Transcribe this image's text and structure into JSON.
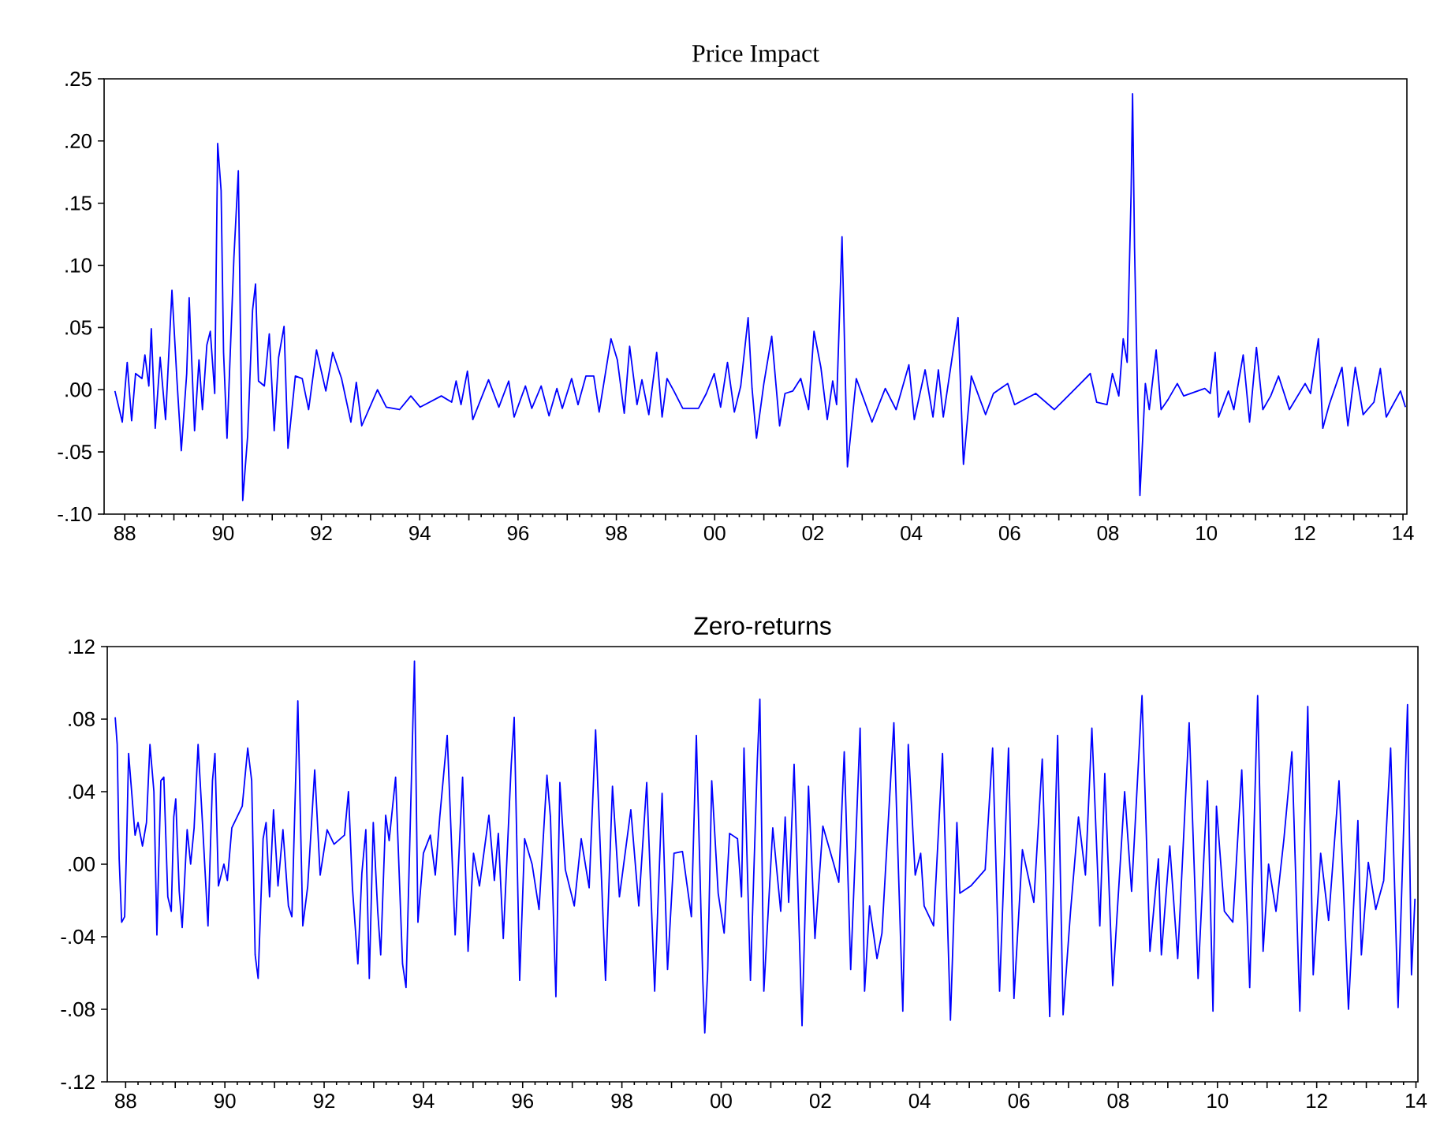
{
  "chart_data": [
    {
      "type": "line",
      "title": "Price Impact",
      "color": "#0000ff",
      "xlim": [
        1987.58,
        2014.08
      ],
      "ylim": [
        -0.1,
        0.25
      ],
      "xticks": [
        {
          "value": 1988,
          "label": "88"
        },
        {
          "value": 1989,
          "label": null
        },
        {
          "value": 1990,
          "label": "90"
        },
        {
          "value": 1991,
          "label": null
        },
        {
          "value": 1992,
          "label": "92"
        },
        {
          "value": 1993,
          "label": null
        },
        {
          "value": 1994,
          "label": "94"
        },
        {
          "value": 1995,
          "label": null
        },
        {
          "value": 1996,
          "label": "96"
        },
        {
          "value": 1997,
          "label": null
        },
        {
          "value": 1998,
          "label": "98"
        },
        {
          "value": 1999,
          "label": null
        },
        {
          "value": 2000,
          "label": "00"
        },
        {
          "value": 2001,
          "label": null
        },
        {
          "value": 2002,
          "label": "02"
        },
        {
          "value": 2003,
          "label": null
        },
        {
          "value": 2004,
          "label": "04"
        },
        {
          "value": 2005,
          "label": null
        },
        {
          "value": 2006,
          "label": "06"
        },
        {
          "value": 2007,
          "label": null
        },
        {
          "value": 2008,
          "label": "08"
        },
        {
          "value": 2009,
          "label": null
        },
        {
          "value": 2010,
          "label": "10"
        },
        {
          "value": 2011,
          "label": null
        },
        {
          "value": 2012,
          "label": "12"
        },
        {
          "value": 2013,
          "label": null
        },
        {
          "value": 2014,
          "label": "14"
        }
      ],
      "yticks": [
        {
          "value": -0.1,
          "label": "-.10"
        },
        {
          "value": -0.05,
          "label": "-.05"
        },
        {
          "value": 0,
          "label": ".00"
        },
        {
          "value": 0.05,
          "label": ".05"
        },
        {
          "value": 0.1,
          "label": ".10"
        },
        {
          "value": 0.15,
          "label": ".15"
        },
        {
          "value": 0.2,
          "label": ".20"
        },
        {
          "value": 0.25,
          "label": ".25"
        }
      ],
      "x": [
        1987.8,
        1987.95,
        1988.05,
        1988.14,
        1988.22,
        1988.35,
        1988.41,
        1988.49,
        1988.54,
        1988.62,
        1988.72,
        1988.83,
        1988.96,
        1989.06,
        1989.15,
        1989.26,
        1989.31,
        1989.42,
        1989.51,
        1989.58,
        1989.67,
        1989.74,
        1989.83,
        1989.89,
        1989.96,
        1990.01,
        1990.08,
        1990.22,
        1990.31,
        1990.4,
        1990.5,
        1990.6,
        1990.66,
        1990.72,
        1990.84,
        1990.94,
        1991.04,
        1991.13,
        1991.24,
        1991.32,
        1991.47,
        1991.61,
        1991.74,
        1991.9,
        1992.09,
        1992.23,
        1992.41,
        1992.6,
        1992.71,
        1992.82,
        1993.14,
        1993.32,
        1993.59,
        1993.82,
        1994.01,
        1994.44,
        1994.65,
        1994.74,
        1994.84,
        1994.97,
        1995.08,
        1995.4,
        1995.61,
        1995.81,
        1995.92,
        1996.15,
        1996.28,
        1996.47,
        1996.63,
        1996.79,
        1996.9,
        1997.09,
        1997.22,
        1997.38,
        1997.54,
        1997.65,
        1997.89,
        1998.02,
        1998.16,
        1998.27,
        1998.42,
        1998.52,
        1998.66,
        1998.82,
        1998.93,
        1999.03,
        1999.17,
        1999.35,
        1999.67,
        1999.83,
        1999.99,
        2000.12,
        2000.26,
        2000.4,
        2000.53,
        2000.68,
        2000.76,
        2000.85,
        2001.0,
        2001.16,
        2001.32,
        2001.43,
        2001.59,
        2001.75,
        2001.91,
        2002.02,
        2002.16,
        2002.29,
        2002.4,
        2002.48,
        2002.59,
        2002.7,
        2002.88,
        2003.2,
        2003.47,
        2003.69,
        2003.95,
        2004.06,
        2004.28,
        2004.44,
        2004.55,
        2004.65,
        2004.95,
        2005.06,
        2005.22,
        2005.51,
        2005.67,
        2005.96,
        2006.1,
        2006.53,
        2006.91,
        2007.34,
        2007.64,
        2007.77,
        2007.98,
        2008.09,
        2008.22,
        2008.31,
        2008.39,
        2008.47,
        2008.5,
        2008.54,
        2008.61,
        2008.65,
        2008.76,
        2008.84,
        2008.98,
        2009.08,
        2009.22,
        2009.41,
        2009.54,
        2009.97,
        2010.08,
        2010.18,
        2010.25,
        2010.45,
        2010.56,
        2010.75,
        2010.88,
        2011.02,
        2011.15,
        2011.31,
        2011.47,
        2011.69,
        2012.01,
        2012.12,
        2012.28,
        2012.37,
        2012.5,
        2012.76,
        2012.88,
        2013.03,
        2013.19,
        2013.41,
        2013.54,
        2013.66,
        2013.95,
        2014.05
      ],
      "values": [
        -0.001,
        -0.026,
        0.022,
        -0.025,
        0.013,
        0.009,
        0.028,
        0.003,
        0.049,
        -0.031,
        0.026,
        -0.024,
        0.08,
        0.009,
        -0.049,
        0.013,
        0.074,
        -0.033,
        0.024,
        -0.016,
        0.036,
        0.047,
        -0.003,
        0.198,
        0.16,
        0.03,
        -0.039,
        0.106,
        0.176,
        -0.089,
        -0.037,
        0.064,
        0.085,
        0.007,
        0.003,
        0.045,
        -0.033,
        0.026,
        0.051,
        -0.047,
        0.011,
        0.009,
        -0.016,
        0.032,
        -0.001,
        0.03,
        0.009,
        -0.026,
        0.006,
        -0.029,
        0.0,
        -0.014,
        -0.016,
        -0.005,
        -0.014,
        -0.005,
        -0.01,
        0.007,
        -0.012,
        0.015,
        -0.024,
        0.008,
        -0.014,
        0.007,
        -0.022,
        0.003,
        -0.015,
        0.003,
        -0.021,
        0.001,
        -0.015,
        0.009,
        -0.012,
        0.011,
        0.011,
        -0.018,
        0.041,
        0.024,
        -0.019,
        0.035,
        -0.012,
        0.008,
        -0.02,
        0.03,
        -0.022,
        0.009,
        -0.001,
        -0.015,
        -0.015,
        -0.003,
        0.013,
        -0.014,
        0.022,
        -0.018,
        0.003,
        0.058,
        0.001,
        -0.039,
        0.005,
        0.043,
        -0.029,
        -0.003,
        -0.001,
        0.009,
        -0.016,
        0.047,
        0.018,
        -0.024,
        0.007,
        -0.012,
        0.123,
        -0.062,
        0.009,
        -0.026,
        0.001,
        -0.016,
        0.02,
        -0.024,
        0.016,
        -0.022,
        0.016,
        -0.022,
        0.058,
        -0.06,
        0.011,
        -0.02,
        -0.003,
        0.005,
        -0.012,
        -0.003,
        -0.016,
        0.001,
        0.013,
        -0.01,
        -0.012,
        0.013,
        -0.005,
        0.041,
        0.022,
        0.158,
        0.238,
        0.114,
        -0.02,
        -0.085,
        0.005,
        -0.016,
        0.032,
        -0.016,
        -0.008,
        0.005,
        -0.005,
        0.001,
        -0.003,
        0.03,
        -0.022,
        -0.001,
        -0.016,
        0.028,
        -0.026,
        0.034,
        -0.016,
        -0.005,
        0.011,
        -0.016,
        0.005,
        -0.003,
        0.041,
        -0.031,
        -0.012,
        0.018,
        -0.029,
        0.018,
        -0.02,
        -0.01,
        0.017,
        -0.022,
        -0.001,
        -0.014
      ]
    },
    {
      "type": "line",
      "title": "Zero-returns",
      "color": "#0000ff",
      "xlim": [
        1987.63,
        2014.04
      ],
      "ylim": [
        -0.12,
        0.12
      ],
      "xticks": [
        {
          "value": 1988,
          "label": "88"
        },
        {
          "value": 1989,
          "label": null
        },
        {
          "value": 1990,
          "label": "90"
        },
        {
          "value": 1991,
          "label": null
        },
        {
          "value": 1992,
          "label": "92"
        },
        {
          "value": 1993,
          "label": null
        },
        {
          "value": 1994,
          "label": "94"
        },
        {
          "value": 1995,
          "label": null
        },
        {
          "value": 1996,
          "label": "96"
        },
        {
          "value": 1997,
          "label": null
        },
        {
          "value": 1998,
          "label": "98"
        },
        {
          "value": 1999,
          "label": null
        },
        {
          "value": 2000,
          "label": "00"
        },
        {
          "value": 2001,
          "label": null
        },
        {
          "value": 2002,
          "label": "02"
        },
        {
          "value": 2003,
          "label": null
        },
        {
          "value": 2004,
          "label": "04"
        },
        {
          "value": 2005,
          "label": null
        },
        {
          "value": 2006,
          "label": "06"
        },
        {
          "value": 2007,
          "label": null
        },
        {
          "value": 2008,
          "label": "08"
        },
        {
          "value": 2009,
          "label": null
        },
        {
          "value": 2010,
          "label": "10"
        },
        {
          "value": 2011,
          "label": null
        },
        {
          "value": 2012,
          "label": "12"
        },
        {
          "value": 2013,
          "label": null
        },
        {
          "value": 2014,
          "label": "14"
        }
      ],
      "yticks": [
        {
          "value": -0.12,
          "label": "-.12"
        },
        {
          "value": -0.08,
          "label": "-.08"
        },
        {
          "value": -0.04,
          "label": "-.04"
        },
        {
          "value": 0,
          "label": ".00"
        },
        {
          "value": 0.04,
          "label": ".04"
        },
        {
          "value": 0.08,
          "label": ".08"
        },
        {
          "value": 0.12,
          "label": ".12"
        }
      ],
      "x": [
        1987.79,
        1987.83,
        1987.87,
        1987.92,
        1987.98,
        1988.02,
        1988.06,
        1988.13,
        1988.19,
        1988.25,
        1988.34,
        1988.42,
        1988.49,
        1988.57,
        1988.63,
        1988.71,
        1988.77,
        1988.85,
        1988.92,
        1988.97,
        1989.01,
        1989.08,
        1989.14,
        1989.24,
        1989.31,
        1989.38,
        1989.46,
        1989.56,
        1989.66,
        1989.75,
        1989.8,
        1989.87,
        1989.98,
        1990.05,
        1990.14,
        1990.35,
        1990.46,
        1990.54,
        1990.61,
        1990.67,
        1990.77,
        1990.83,
        1990.9,
        1990.98,
        1991.07,
        1991.17,
        1991.28,
        1991.35,
        1991.47,
        1991.57,
        1991.67,
        1991.81,
        1991.92,
        1992.06,
        1992.2,
        1992.41,
        1992.49,
        1992.57,
        1992.68,
        1992.76,
        1992.84,
        1992.91,
        1992.99,
        1993.08,
        1993.14,
        1993.24,
        1993.31,
        1993.44,
        1993.58,
        1993.65,
        1993.76,
        1993.82,
        1993.89,
        1994.0,
        1994.14,
        1994.24,
        1994.33,
        1994.48,
        1994.64,
        1994.79,
        1994.9,
        1995.01,
        1995.13,
        1995.32,
        1995.43,
        1995.51,
        1995.61,
        1995.77,
        1995.83,
        1995.94,
        1996.04,
        1996.19,
        1996.33,
        1996.49,
        1996.56,
        1996.67,
        1996.75,
        1996.86,
        1997.04,
        1997.18,
        1997.34,
        1997.47,
        1997.67,
        1997.81,
        1997.95,
        1998.18,
        1998.34,
        1998.5,
        1998.66,
        1998.81,
        1998.92,
        1999.05,
        1999.22,
        1999.4,
        1999.5,
        1999.63,
        1999.67,
        1999.73,
        1999.81,
        1999.94,
        2000.06,
        2000.17,
        2000.33,
        2000.41,
        2000.46,
        2000.59,
        2000.73,
        2000.78,
        2000.86,
        2001.04,
        2001.2,
        2001.29,
        2001.36,
        2001.47,
        2001.63,
        2001.76,
        2001.89,
        2002.05,
        2002.27,
        2002.37,
        2002.48,
        2002.61,
        2002.71,
        2002.8,
        2002.89,
        2002.99,
        2003.14,
        2003.24,
        2003.48,
        2003.66,
        2003.77,
        2003.91,
        2004.02,
        2004.09,
        2004.28,
        2004.46,
        2004.62,
        2004.75,
        2004.81,
        2005.03,
        2005.32,
        2005.47,
        2005.61,
        2005.79,
        2005.9,
        2006.07,
        2006.3,
        2006.47,
        2006.62,
        2006.78,
        2006.89,
        2007.04,
        2007.2,
        2007.34,
        2007.47,
        2007.63,
        2007.73,
        2007.89,
        2008.13,
        2008.27,
        2008.48,
        2008.64,
        2008.81,
        2008.87,
        2009.04,
        2009.2,
        2009.43,
        2009.61,
        2009.8,
        2009.91,
        2009.98,
        2010.14,
        2010.31,
        2010.49,
        2010.65,
        2010.81,
        2010.92,
        2011.03,
        2011.18,
        2011.34,
        2011.5,
        2011.66,
        2011.82,
        2011.93,
        2012.08,
        2012.24,
        2012.45,
        2012.64,
        2012.83,
        2012.9,
        2013.04,
        2013.19,
        2013.35,
        2013.49,
        2013.64,
        2013.83,
        2013.91,
        2013.98
      ],
      "values": [
        0.081,
        0.066,
        0.003,
        -0.032,
        -0.029,
        0.011,
        0.061,
        0.037,
        0.016,
        0.023,
        0.01,
        0.023,
        0.066,
        0.04,
        -0.039,
        0.046,
        0.048,
        -0.018,
        -0.026,
        0.026,
        0.036,
        -0.015,
        -0.035,
        0.019,
        0.0,
        0.02,
        0.066,
        0.017,
        -0.034,
        0.046,
        0.061,
        -0.012,
        0.0,
        -0.009,
        0.02,
        0.032,
        0.064,
        0.046,
        -0.05,
        -0.063,
        0.014,
        0.023,
        -0.018,
        0.03,
        -0.012,
        0.019,
        -0.023,
        -0.029,
        0.09,
        -0.034,
        -0.012,
        0.052,
        -0.006,
        0.019,
        0.011,
        0.016,
        0.04,
        -0.013,
        -0.055,
        -0.005,
        0.019,
        -0.063,
        0.023,
        -0.026,
        -0.05,
        0.027,
        0.013,
        0.048,
        -0.055,
        -0.068,
        0.048,
        0.112,
        -0.032,
        0.006,
        0.016,
        -0.006,
        0.026,
        0.071,
        -0.039,
        0.048,
        -0.048,
        0.006,
        -0.012,
        0.027,
        -0.009,
        0.017,
        -0.041,
        0.055,
        0.081,
        -0.064,
        0.014,
        0.0,
        -0.025,
        0.049,
        0.026,
        -0.073,
        0.045,
        -0.003,
        -0.023,
        0.014,
        -0.013,
        0.074,
        -0.064,
        0.043,
        -0.018,
        0.03,
        -0.023,
        0.045,
        -0.07,
        0.039,
        -0.058,
        0.006,
        0.007,
        -0.029,
        0.071,
        -0.064,
        -0.093,
        -0.058,
        0.046,
        -0.016,
        -0.038,
        0.017,
        0.014,
        -0.018,
        0.064,
        -0.064,
        0.058,
        0.091,
        -0.07,
        0.02,
        -0.026,
        0.026,
        -0.021,
        0.055,
        -0.089,
        0.043,
        -0.041,
        0.021,
        0.0,
        -0.01,
        0.062,
        -0.058,
        0.011,
        0.075,
        -0.07,
        -0.023,
        -0.052,
        -0.038,
        0.078,
        -0.081,
        0.066,
        -0.006,
        0.006,
        -0.023,
        -0.034,
        0.061,
        -0.086,
        0.023,
        -0.016,
        -0.012,
        -0.003,
        0.064,
        -0.07,
        0.064,
        -0.074,
        0.008,
        -0.021,
        0.058,
        -0.084,
        0.071,
        -0.083,
        -0.026,
        0.026,
        -0.006,
        0.075,
        -0.034,
        0.05,
        -0.067,
        0.04,
        -0.015,
        0.093,
        -0.048,
        0.003,
        -0.05,
        0.01,
        -0.052,
        0.078,
        -0.063,
        0.046,
        -0.081,
        0.032,
        -0.026,
        -0.032,
        0.052,
        -0.068,
        0.093,
        -0.048,
        0.0,
        -0.026,
        0.014,
        0.062,
        -0.081,
        0.087,
        -0.061,
        0.006,
        -0.031,
        0.046,
        -0.08,
        0.024,
        -0.05,
        0.001,
        -0.025,
        -0.009,
        0.064,
        -0.079,
        0.088,
        -0.061,
        -0.019
      ]
    }
  ]
}
